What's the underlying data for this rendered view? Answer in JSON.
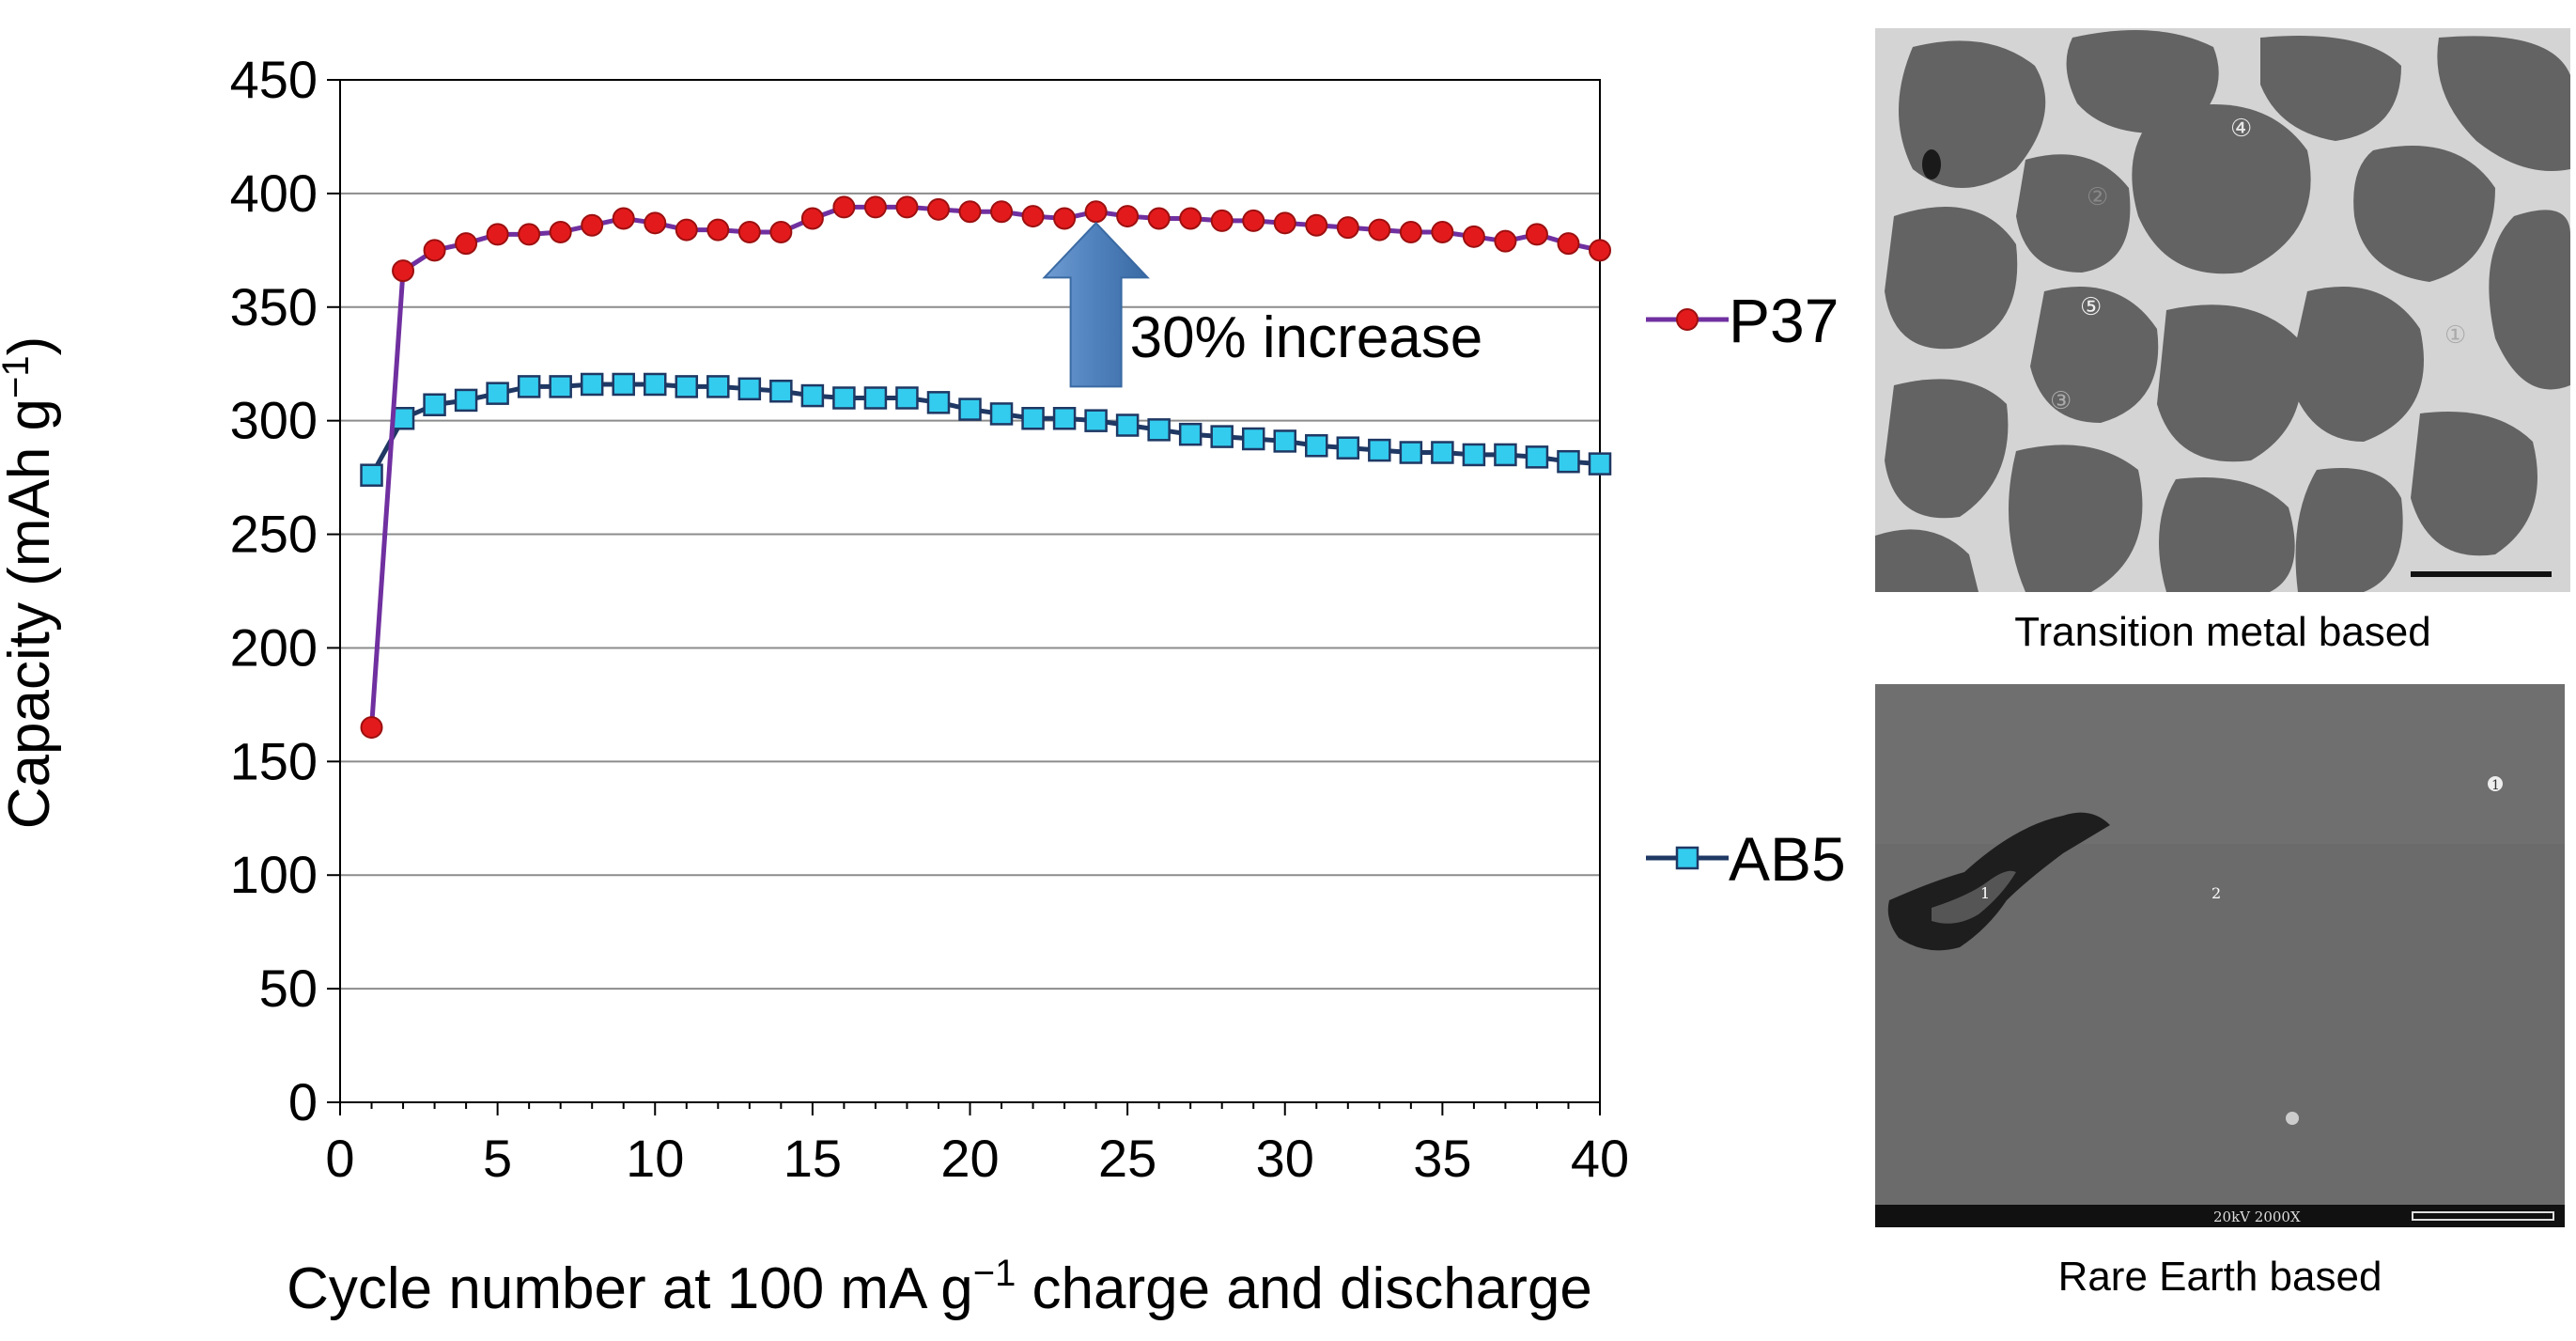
{
  "chart_data": {
    "type": "line",
    "xlabel_main": "Cycle number at 100 mA g",
    "xlabel_sup": "−1",
    "xlabel_rest": " charge and discharge",
    "ylabel_main": "Capacity (mAh g",
    "ylabel_sup": "−1",
    "ylabel_rest": ")",
    "xlim": [
      0,
      40
    ],
    "ylim": [
      0,
      450
    ],
    "x_ticks": [
      "0",
      "5",
      "10",
      "15",
      "20",
      "25",
      "30",
      "35",
      "40"
    ],
    "y_ticks": [
      "0",
      "50",
      "100",
      "150",
      "200",
      "250",
      "300",
      "350",
      "400",
      "450"
    ],
    "x_tick_values": [
      0,
      5,
      10,
      15,
      20,
      25,
      30,
      35,
      40
    ],
    "y_tick_values": [
      0,
      50,
      100,
      150,
      200,
      250,
      300,
      350,
      400,
      450
    ],
    "x": [
      1,
      2,
      3,
      4,
      5,
      6,
      7,
      8,
      9,
      10,
      11,
      12,
      13,
      14,
      15,
      16,
      17,
      18,
      19,
      20,
      21,
      22,
      23,
      24,
      25,
      26,
      27,
      28,
      29,
      30,
      31,
      32,
      33,
      34,
      35,
      36,
      37,
      38,
      39,
      40
    ],
    "series": [
      {
        "name": "P37",
        "line_color": "#7030a0",
        "marker_color": "#e31a1c",
        "marker": "circle",
        "values": [
          165,
          366,
          375,
          378,
          382,
          382,
          383,
          386,
          389,
          387,
          384,
          384,
          383,
          383,
          389,
          394,
          394,
          394,
          393,
          392,
          392,
          390,
          389,
          392,
          390,
          389,
          389,
          388,
          388,
          387,
          386,
          385,
          384,
          383,
          383,
          381,
          379,
          382,
          378,
          375
        ]
      },
      {
        "name": "AB5",
        "line_color": "#1f3864",
        "marker_color": "#33ccee",
        "marker": "square",
        "values": [
          276,
          301,
          307,
          309,
          312,
          315,
          315,
          316,
          316,
          316,
          315,
          315,
          314,
          313,
          311,
          310,
          310,
          310,
          308,
          305,
          303,
          301,
          301,
          300,
          298,
          296,
          294,
          293,
          292,
          291,
          289,
          288,
          287,
          286,
          286,
          285,
          285,
          284,
          282,
          281
        ]
      }
    ],
    "annotation": {
      "text": "30% increase",
      "arrow_x": 24,
      "arrow_from": 315,
      "arrow_to": 387,
      "arrow_color": "#4f81bd"
    },
    "legend_placement": "right"
  },
  "micrographs": {
    "top_caption": "Transition metal based",
    "bottom_caption": "Rare Earth based",
    "top_markers": [
      "④",
      "②",
      "⑤",
      "①",
      "③"
    ],
    "bottom_markers": [
      "1",
      "2",
      "1"
    ],
    "bottom_info": "20kV  2000X"
  }
}
